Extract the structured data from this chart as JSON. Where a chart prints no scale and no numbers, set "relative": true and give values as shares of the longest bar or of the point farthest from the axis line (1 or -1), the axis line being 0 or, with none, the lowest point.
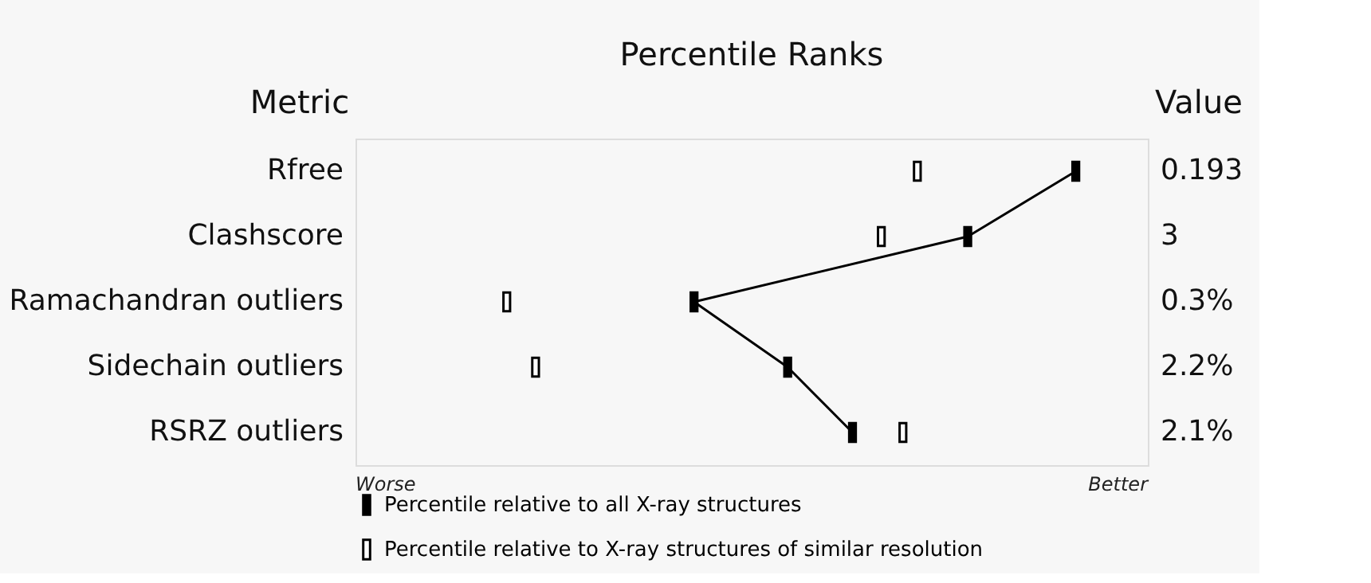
{
  "chart_data": {
    "type": "scatter",
    "orientation": "horizontal",
    "title": "Percentile Ranks",
    "relative": true,
    "categories": [
      "Rfree",
      "Clashscore",
      "Ramachandran outliers",
      "Sidechain outliers",
      "RSRZ outliers"
    ],
    "series": [
      {
        "name": "Percentile relative to all X-ray structures",
        "type": "line",
        "marker": "square",
        "color": "#000000",
        "values": [
          1,
          0.85,
          0.47,
          0.6,
          0.69
        ]
      },
      {
        "name": "Percentile relative to X-ray structures of similar resolution",
        "color": "#ffffff",
        "values": [
          0.78,
          0.73,
          0.21,
          0.25,
          0.76
        ]
      }
    ],
    "annotations": [
      "Metric",
      "Value",
      "Worse",
      "Better",
      "0.193",
      "3",
      "0.3%",
      "2.2%",
      "2.1%"
    ],
    "legend": "bottom"
  }
}
